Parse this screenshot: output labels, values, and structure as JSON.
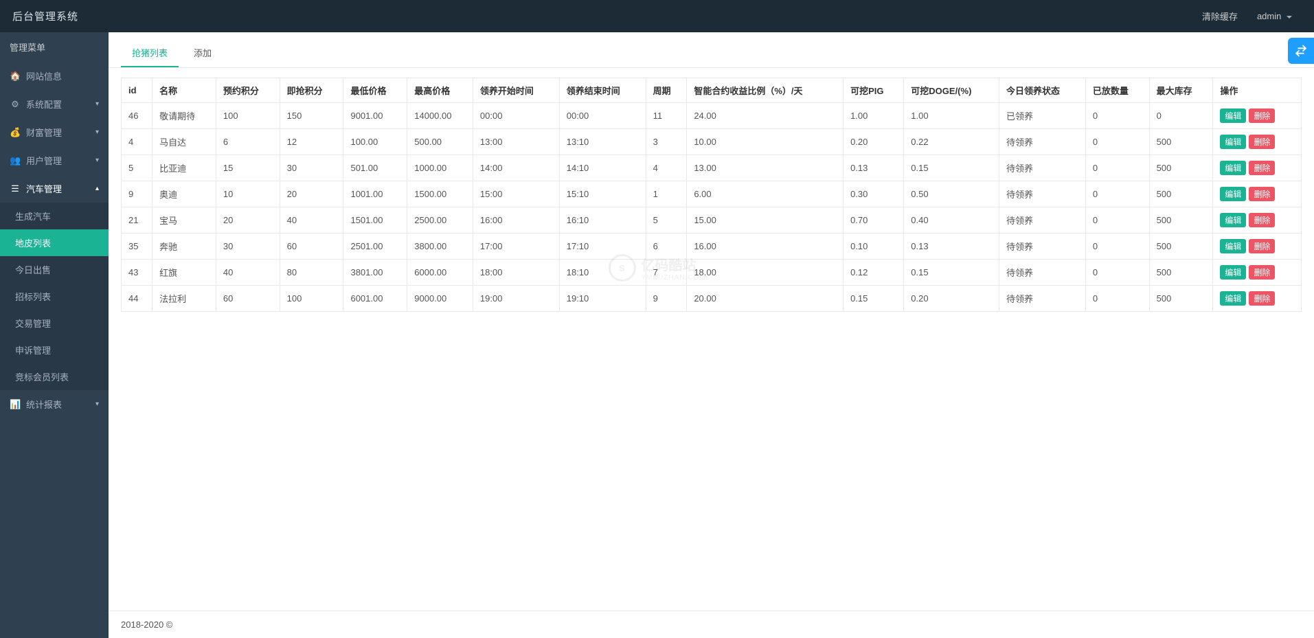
{
  "header": {
    "brand": "后台管理系统",
    "clear_cache": "清除缓存",
    "user": "admin"
  },
  "sidebar": {
    "title": "管理菜单",
    "items": [
      {
        "icon": "🏠",
        "label": "网站信息",
        "arrow": ""
      },
      {
        "icon": "⚙",
        "label": "系统配置",
        "arrow": "▾"
      },
      {
        "icon": "💰",
        "label": "财富管理",
        "arrow": "▾"
      },
      {
        "icon": "👥",
        "label": "用户管理",
        "arrow": "▾"
      },
      {
        "icon": "☰",
        "label": "汽车管理",
        "arrow": "▴",
        "expanded": true
      },
      {
        "icon": "📊",
        "label": "统计报表",
        "arrow": "▾"
      }
    ],
    "car_sub": [
      {
        "label": "生成汽车"
      },
      {
        "label": "地皮列表",
        "active": true
      },
      {
        "label": "今日出售"
      },
      {
        "label": "招标列表"
      },
      {
        "label": "交易管理"
      },
      {
        "label": "申诉管理"
      },
      {
        "label": "竞标会员列表"
      }
    ]
  },
  "tabs": [
    {
      "label": "抢猪列表",
      "active": true
    },
    {
      "label": "添加"
    }
  ],
  "table": {
    "columns": [
      "id",
      "名称",
      "预约积分",
      "即抢积分",
      "最低价格",
      "最高价格",
      "领养开始时间",
      "领养结束时间",
      "周期",
      "智能合约收益比例（%）/天",
      "可挖PIG",
      "可挖DOGE/(%)",
      "今日领养状态",
      "已放数量",
      "最大库存",
      "操作"
    ],
    "rows": [
      [
        "46",
        "敬请期待",
        "100",
        "150",
        "9001.00",
        "14000.00",
        "00:00",
        "00:00",
        "11",
        "24.00",
        "1.00",
        "1.00",
        "已领养",
        "0",
        "0"
      ],
      [
        "4",
        "马自达",
        "6",
        "12",
        "100.00",
        "500.00",
        "13:00",
        "13:10",
        "3",
        "10.00",
        "0.20",
        "0.22",
        "待领养",
        "0",
        "500"
      ],
      [
        "5",
        "比亚迪",
        "15",
        "30",
        "501.00",
        "1000.00",
        "14:00",
        "14:10",
        "4",
        "13.00",
        "0.13",
        "0.15",
        "待领养",
        "0",
        "500"
      ],
      [
        "9",
        "奥迪",
        "10",
        "20",
        "1001.00",
        "1500.00",
        "15:00",
        "15:10",
        "1",
        "6.00",
        "0.30",
        "0.50",
        "待领养",
        "0",
        "500"
      ],
      [
        "21",
        "宝马",
        "20",
        "40",
        "1501.00",
        "2500.00",
        "16:00",
        "16:10",
        "5",
        "15.00",
        "0.70",
        "0.40",
        "待领养",
        "0",
        "500"
      ],
      [
        "35",
        "奔驰",
        "30",
        "60",
        "2501.00",
        "3800.00",
        "17:00",
        "17:10",
        "6",
        "16.00",
        "0.10",
        "0.13",
        "待领养",
        "0",
        "500"
      ],
      [
        "43",
        "红旗",
        "40",
        "80",
        "3801.00",
        "6000.00",
        "18:00",
        "18:10",
        "7",
        "18.00",
        "0.12",
        "0.15",
        "待领养",
        "0",
        "500"
      ],
      [
        "44",
        "法拉利",
        "60",
        "100",
        "6001.00",
        "9000.00",
        "19:00",
        "19:10",
        "9",
        "20.00",
        "0.15",
        "0.20",
        "待领养",
        "0",
        "500"
      ]
    ],
    "edit_label": "编辑",
    "delete_label": "删除"
  },
  "footer": "2018-2020 ©",
  "watermark": {
    "circle": "S",
    "big": "亿码酷站",
    "small": "YMKUZHAN.COM"
  },
  "colors": {
    "header_bg": "#1c2b36",
    "sidebar_bg": "#2f4050",
    "sidebar_sub_bg": "#293846",
    "primary": "#1ab394",
    "danger": "#ed5565",
    "border": "#e7eaec",
    "float_badge": "#1e9fff"
  }
}
